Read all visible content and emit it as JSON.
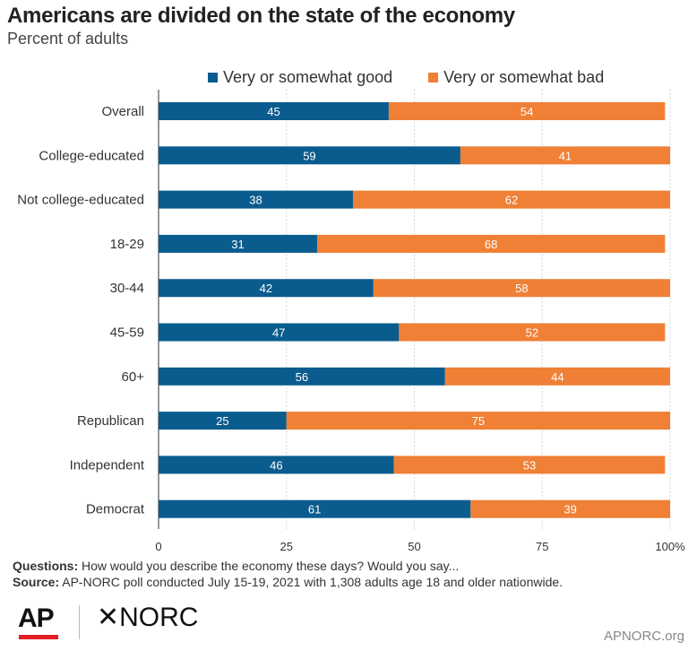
{
  "title": "Americans are divided on the state of the economy",
  "subtitle": "Percent of adults",
  "legend": [
    {
      "label": "Very or somewhat good",
      "color": "#0b5c8e"
    },
    {
      "label": "Very or somewhat bad",
      "color": "#ef8035"
    }
  ],
  "chart_data": {
    "type": "bar",
    "orientation": "horizontal",
    "stacked": true,
    "categories": [
      "Overall",
      "College-educated",
      "Not college-educated",
      "18-29",
      "30-44",
      "45-59",
      "60+",
      "Republican",
      "Independent",
      "Democrat"
    ],
    "series": [
      {
        "name": "Very or somewhat good",
        "color": "#0b5c8e",
        "values": [
          45,
          59,
          38,
          31,
          42,
          47,
          56,
          25,
          46,
          61
        ]
      },
      {
        "name": "Very or somewhat bad",
        "color": "#ef8035",
        "values": [
          54,
          41,
          62,
          68,
          58,
          52,
          44,
          75,
          53,
          39
        ]
      }
    ],
    "xlim": [
      0,
      100
    ],
    "xticks": [
      "0",
      "25",
      "50",
      "75",
      "100%"
    ],
    "grid": true,
    "legend_position": "top"
  },
  "notes": {
    "questions_label": "Questions:",
    "questions_text": " How would you describe the economy these days? Would you say...",
    "source_label": "Source:",
    "source_text": " AP-NORC poll conducted July 15-19, 2021 with 1,308 adults age 18 and older nationwide."
  },
  "logos": {
    "ap": "AP",
    "norc": "NORC"
  },
  "footer_url": "APNORC.org"
}
